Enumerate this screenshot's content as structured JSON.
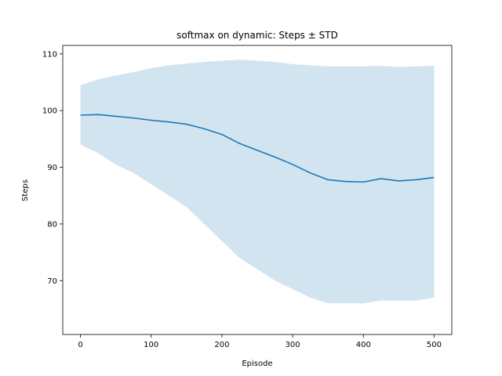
{
  "chart_data": {
    "type": "line",
    "title": "softmax on dynamic: Steps ± STD",
    "xlabel": "Episode",
    "ylabel": "Steps",
    "xlim": [
      -25,
      525
    ],
    "ylim": [
      60.5,
      111.5
    ],
    "xticks": [
      0,
      100,
      200,
      300,
      400,
      500
    ],
    "yticks": [
      70,
      80,
      90,
      100,
      110
    ],
    "grid": false,
    "legend": "none",
    "colors": {
      "line": "#1f77b4",
      "band": "#1f77b4",
      "band_opacity": 0.2
    },
    "x": [
      0,
      25,
      50,
      75,
      100,
      125,
      150,
      175,
      200,
      225,
      250,
      275,
      300,
      325,
      350,
      375,
      400,
      425,
      450,
      475,
      500
    ],
    "series": [
      {
        "values": [
          99.2,
          99.3,
          99.0,
          98.7,
          98.3,
          98.0,
          97.6,
          96.8,
          95.8,
          94.2,
          93.0,
          91.8,
          90.5,
          89.0,
          87.8,
          87.5,
          87.4,
          88.0,
          87.6,
          87.8,
          88.2
        ]
      }
    ],
    "band": {
      "upper": [
        104.5,
        105.5,
        106.2,
        106.8,
        107.5,
        108.0,
        108.3,
        108.6,
        108.8,
        109.0,
        108.8,
        108.6,
        108.2,
        108.0,
        107.8,
        107.8,
        107.8,
        107.9,
        107.7,
        107.8,
        107.9
      ],
      "lower": [
        94.0,
        92.5,
        90.5,
        89.0,
        87.0,
        85.0,
        83.0,
        80.0,
        77.0,
        74.0,
        72.0,
        70.0,
        68.5,
        67.0,
        66.0,
        66.0,
        66.0,
        66.5,
        66.5,
        66.5,
        67.0
      ]
    }
  }
}
